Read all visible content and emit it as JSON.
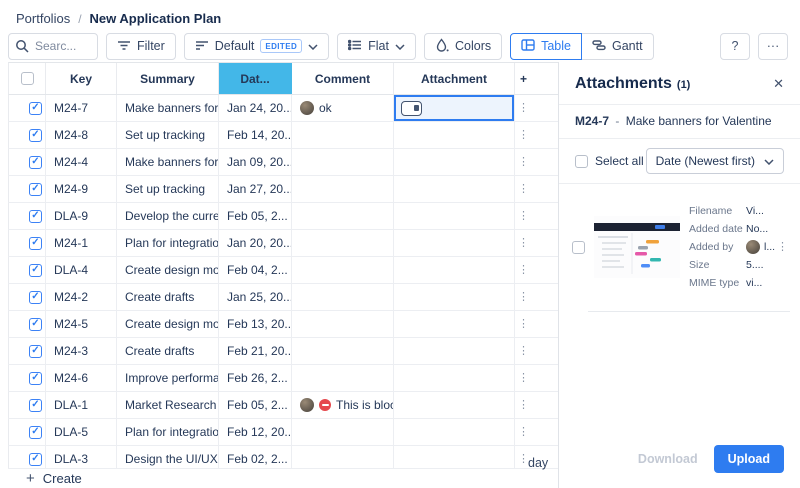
{
  "glyphs": {
    "plus": "+",
    "kebab": "⋮",
    "close": "✕",
    "help": "?",
    "more": "···"
  },
  "colors": {
    "accent": "#2e7cf0",
    "selected_column_bg": "#43b7e8",
    "selected_cell_bg": "#edf4fd",
    "blocked_red": "#e5484d",
    "disabled_text": "#c3c9d4"
  },
  "breadcrumb": {
    "root": "Portfolios",
    "separator": "/",
    "current": "New Application Plan"
  },
  "toolbar": {
    "search_placeholder": "Searc...",
    "filter": "Filter",
    "view": "Default",
    "view_badge": "EDITED",
    "grouping": "Flat",
    "colors": "Colors",
    "table": "Table",
    "gantt": "Gantt"
  },
  "table": {
    "header": {
      "key": "Key",
      "summary": "Summary",
      "date": "Dat...",
      "comment": "Comment",
      "attachment": "Attachment"
    },
    "rows": [
      {
        "key": "M24-7",
        "summary": "Make banners for V...",
        "date": "Jan 24, 20...",
        "comment": "ok",
        "comment_avatar": true,
        "comment_blocked": false,
        "attachment_selected": true
      },
      {
        "key": "M24-8",
        "summary": "Set up tracking",
        "date": "Feb 14, 20...",
        "comment": "",
        "comment_avatar": false,
        "comment_blocked": false,
        "attachment_selected": false
      },
      {
        "key": "M24-4",
        "summary": "Make banners for V...",
        "date": "Jan 09, 20...",
        "comment": "",
        "comment_avatar": false,
        "comment_blocked": false,
        "attachment_selected": false
      },
      {
        "key": "M24-9",
        "summary": "Set up tracking",
        "date": "Jan 27, 20...",
        "comment": "",
        "comment_avatar": false,
        "comment_blocked": false,
        "attachment_selected": false
      },
      {
        "key": "DLA-9",
        "summary": "Develop the curren...",
        "date": "Feb 05, 2...",
        "comment": "",
        "comment_avatar": false,
        "comment_blocked": false,
        "attachment_selected": false
      },
      {
        "key": "M24-1",
        "summary": "Plan for integration",
        "date": "Jan 20, 20...",
        "comment": "",
        "comment_avatar": false,
        "comment_blocked": false,
        "attachment_selected": false
      },
      {
        "key": "DLA-4",
        "summary": "Create design moc...",
        "date": "Feb 04, 2...",
        "comment": "",
        "comment_avatar": false,
        "comment_blocked": false,
        "attachment_selected": false
      },
      {
        "key": "M24-2",
        "summary": "Create drafts",
        "date": "Jan 25, 20...",
        "comment": "",
        "comment_avatar": false,
        "comment_blocked": false,
        "attachment_selected": false
      },
      {
        "key": "M24-5",
        "summary": "Create design moc...",
        "date": "Feb 13, 20...",
        "comment": "",
        "comment_avatar": false,
        "comment_blocked": false,
        "attachment_selected": false
      },
      {
        "key": "M24-3",
        "summary": "Create drafts",
        "date": "Feb 21, 20...",
        "comment": "",
        "comment_avatar": false,
        "comment_blocked": false,
        "attachment_selected": false
      },
      {
        "key": "M24-6",
        "summary": "Improve performan...",
        "date": "Feb 26, 2...",
        "comment": "",
        "comment_avatar": false,
        "comment_blocked": false,
        "attachment_selected": false
      },
      {
        "key": "DLA-1",
        "summary": "Market Research &...",
        "date": "Feb 05, 2...",
        "comment": "This is bloc...",
        "comment_avatar": true,
        "comment_blocked": true,
        "attachment_selected": false
      },
      {
        "key": "DLA-5",
        "summary": "Plan for integration",
        "date": "Feb 12, 20...",
        "comment": "",
        "comment_avatar": false,
        "comment_blocked": false,
        "attachment_selected": false
      },
      {
        "key": "DLA-3",
        "summary": "Design the UI/UX w...",
        "date": "Feb 02, 2...",
        "comment": "",
        "comment_avatar": false,
        "comment_blocked": false,
        "attachment_selected": false
      }
    ],
    "create_label": "Create",
    "timeline_fragment": "day"
  },
  "panel": {
    "title": "Attachments",
    "count": "(1)",
    "task": {
      "key": "M24-7",
      "separator": "-",
      "title": "Make banners for Valentine"
    },
    "select_all": "Select all",
    "sort": "Date (Newest first)",
    "file": {
      "fields": [
        {
          "label": "Filename",
          "value": "Vi...",
          "avatar": false,
          "menu": false
        },
        {
          "label": "Added date",
          "value": "No...",
          "avatar": false,
          "menu": false
        },
        {
          "label": "Added by",
          "value": "l...",
          "avatar": true,
          "menu": true
        },
        {
          "label": "Size",
          "value": "5....",
          "avatar": false,
          "menu": false
        },
        {
          "label": "MIME type",
          "value": "vi...",
          "avatar": false,
          "menu": false
        }
      ]
    },
    "download": "Download",
    "upload": "Upload"
  }
}
